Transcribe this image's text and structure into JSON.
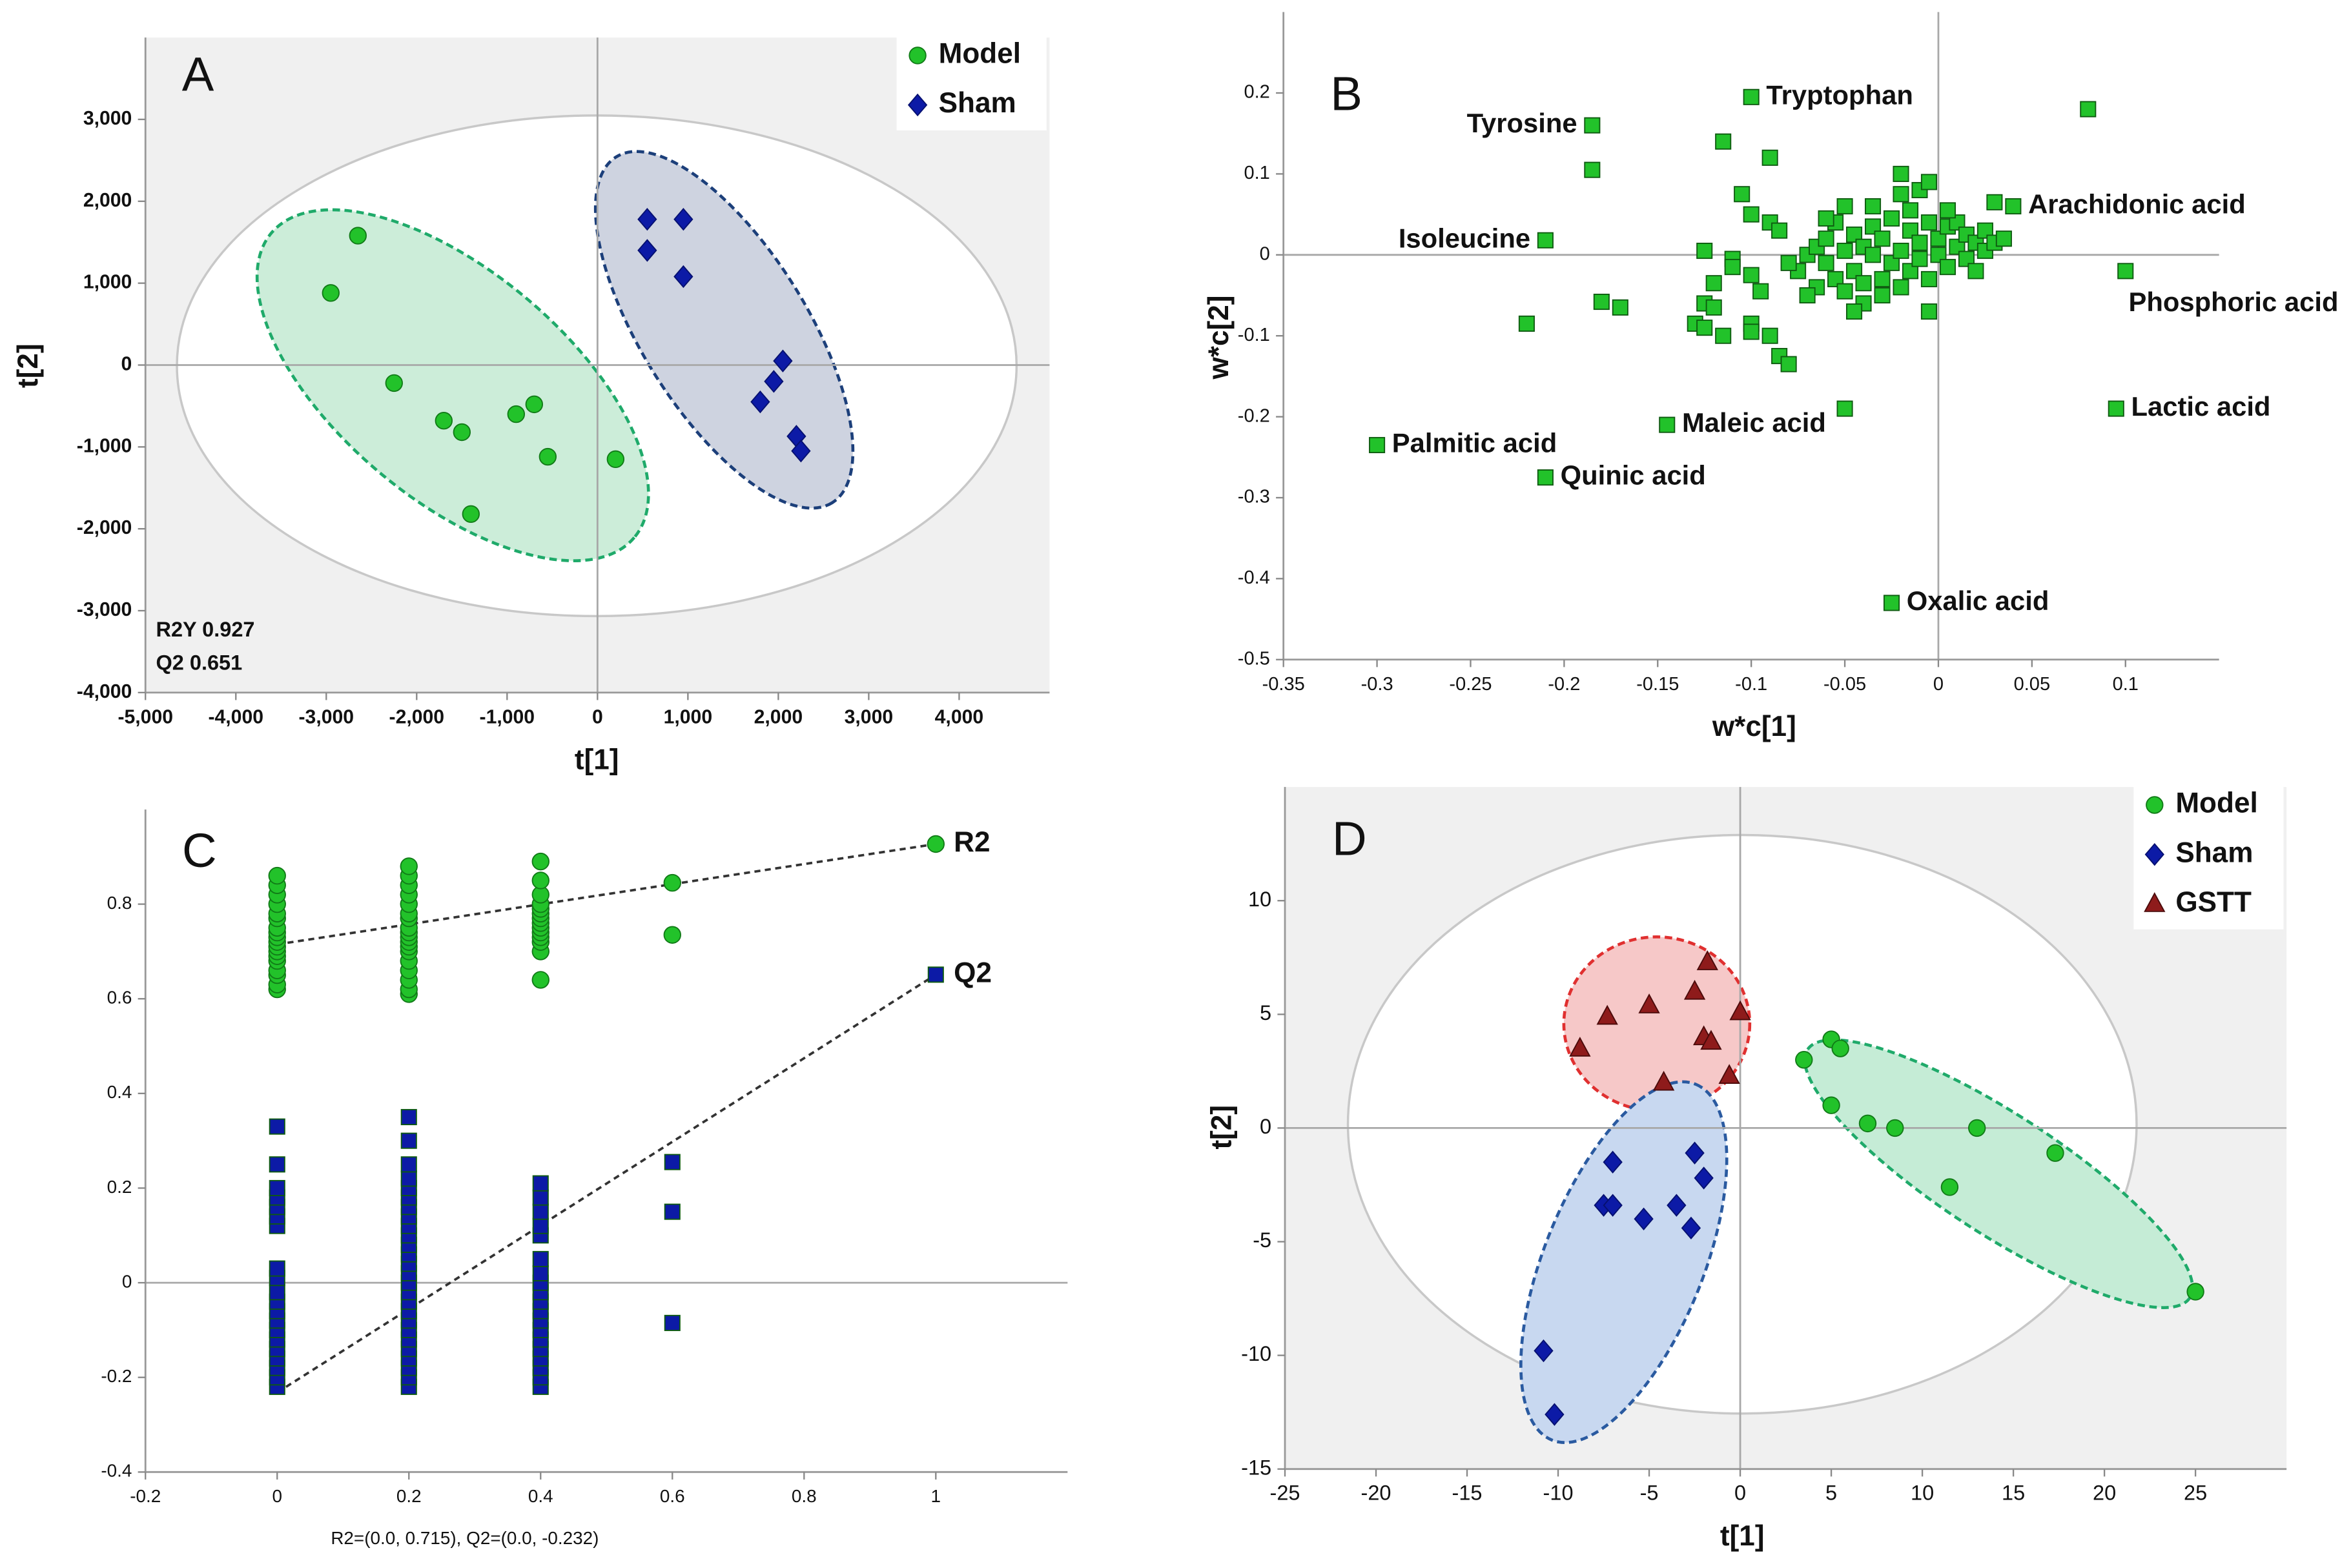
{
  "chart_data": [
    {
      "type": "scatter",
      "panel": "A",
      "x_label": "t[1]",
      "y_label": "t[2]",
      "annotations": [
        "R2Y 0.927",
        "Q2 0.651"
      ],
      "xlim": [
        -5000,
        5000
      ],
      "xticks": [
        {
          "value": -5000,
          "label": "-5,000"
        },
        {
          "value": -4000,
          "label": "-4,000"
        },
        {
          "value": -3000,
          "label": "-3,000"
        },
        {
          "value": -2000,
          "label": "-2,000"
        },
        {
          "value": -1000,
          "label": "-1,000"
        },
        0,
        {
          "value": 1000,
          "label": "1,000"
        },
        {
          "value": 2000,
          "label": "2,000"
        },
        {
          "value": 3000,
          "label": "3,000"
        },
        {
          "value": 4000,
          "label": "4,000"
        }
      ],
      "ylim": [
        -4000,
        4000
      ],
      "yticks": [
        {
          "value": -4000,
          "label": "-4,000"
        },
        {
          "value": -3000,
          "label": "-3,000"
        },
        {
          "value": -2000,
          "label": "-2,000"
        },
        {
          "value": -1000,
          "label": "-1,000"
        },
        0,
        {
          "value": 1000,
          "label": "1,000"
        },
        {
          "value": 2000,
          "label": "2,000"
        },
        {
          "value": 3000,
          "label": "3,000"
        }
      ],
      "plot_background": "#f0f0f0",
      "zero_lines": [
        "x",
        "y"
      ],
      "legend": "top-right",
      "series": [
        {
          "name": "Model",
          "color": "#22c22a",
          "marker": "circle",
          "x": [
            -2650,
            -2950,
            -2250,
            -1700,
            -1500,
            -900,
            -700,
            -550,
            -1400,
            200
          ],
          "values": [
            1580,
            880,
            -220,
            -680,
            -820,
            -600,
            -480,
            -1120,
            -1820,
            -1150
          ]
        },
        {
          "name": "Sham",
          "color": "#0c1aa6",
          "marker": "diamond",
          "x": [
            550,
            950,
            550,
            950,
            2050,
            1950,
            1800,
            2200,
            2250
          ],
          "values": [
            1780,
            1780,
            1400,
            1080,
            50,
            -200,
            -450,
            -870,
            -1050
          ]
        }
      ]
    },
    {
      "type": "scatter",
      "panel": "B",
      "x_label": "w*c[1]",
      "y_label": "w*c[2]",
      "xlim": [
        -0.35,
        0.15
      ],
      "xticks": [
        -0.35,
        -0.3,
        -0.25,
        -0.2,
        -0.15,
        -0.1,
        -0.05,
        0,
        0.05,
        0.1
      ],
      "ylim": [
        -0.5,
        0.3
      ],
      "yticks": [
        -0.5,
        -0.4,
        -0.3,
        -0.2,
        -0.1,
        0,
        0.1,
        0.2
      ],
      "zero_lines": [
        "x",
        "y"
      ],
      "color": "#22c22a",
      "marker": "square",
      "x": [
        -0.185,
        -0.1,
        0.04,
        -0.21,
        0.1,
        0.095,
        -0.3,
        -0.145,
        -0.21,
        -0.025,
        -0.115,
        -0.09,
        -0.185,
        -0.105,
        -0.1,
        -0.09,
        -0.085,
        -0.05,
        -0.035,
        -0.02,
        -0.01,
        -0.02,
        -0.005,
        0.03,
        -0.125,
        -0.11,
        -0.11,
        -0.1,
        -0.095,
        -0.12,
        -0.125,
        -0.12,
        -0.13,
        -0.125,
        -0.115,
        -0.1,
        -0.1,
        -0.085,
        -0.08,
        -0.09,
        -0.18,
        -0.17,
        -0.22,
        -0.05,
        -0.005,
        0.08,
        -0.075,
        -0.07,
        -0.065,
        -0.06,
        -0.06,
        -0.055,
        -0.05,
        -0.05,
        -0.045,
        -0.045,
        -0.04,
        -0.04,
        -0.035,
        -0.035,
        -0.03,
        -0.03,
        -0.025,
        -0.025,
        -0.02,
        -0.02,
        -0.015,
        -0.015,
        -0.01,
        -0.01,
        -0.005,
        -0.005,
        0,
        0,
        0.005,
        0.005,
        0.01,
        0.01,
        0.015,
        0.015,
        0.02,
        0.02,
        0.025,
        0.025,
        0.03,
        0.035,
        -0.065,
        -0.055,
        -0.045,
        -0.07,
        -0.08,
        -0.03,
        0.005,
        -0.015,
        -0.06,
        -0.04
      ],
      "values": [
        0.16,
        0.195,
        0.06,
        0.018,
        -0.02,
        -0.19,
        -0.235,
        -0.21,
        -0.275,
        -0.43,
        0.14,
        0.12,
        0.105,
        0.075,
        0.05,
        0.04,
        0.03,
        0.06,
        0.06,
        0.075,
        0.08,
        0.1,
        0.09,
        0.065,
        0.005,
        -0.005,
        -0.015,
        -0.025,
        -0.045,
        -0.035,
        -0.06,
        -0.065,
        -0.085,
        -0.09,
        -0.1,
        -0.085,
        -0.095,
        -0.125,
        -0.135,
        -0.1,
        -0.058,
        -0.065,
        -0.085,
        -0.19,
        -0.07,
        0.18,
        -0.02,
        0,
        0.01,
        -0.01,
        0.02,
        -0.03,
        0.005,
        -0.045,
        0.025,
        -0.02,
        0.01,
        -0.06,
        0,
        0.035,
        -0.03,
        0.02,
        -0.01,
        0.045,
        0.005,
        -0.04,
        0.03,
        -0.02,
        0.015,
        -0.005,
        0.04,
        -0.03,
        0.02,
        0,
        0.035,
        -0.015,
        0.01,
        0.04,
        -0.005,
        0.025,
        0.015,
        -0.02,
        0.005,
        0.03,
        0.015,
        0.02,
        -0.04,
        0.04,
        -0.07,
        -0.05,
        -0.01,
        -0.05,
        0.055,
        0.055,
        0.045,
        -0.035
      ],
      "point_labels": [
        "Tyrosine",
        "Tryptophan",
        "Arachidonic acid",
        "Isoleucine",
        "Phosphoric acid",
        "Lactic acid",
        "Palmitic acid",
        "Maleic acid",
        "Quinic acid",
        "Oxalic acid",
        null,
        null,
        null,
        null,
        null,
        null,
        null,
        null,
        null,
        null,
        null,
        null,
        null,
        null,
        null,
        null,
        null,
        null,
        null,
        null,
        null,
        null,
        null,
        null,
        null,
        null,
        null,
        null,
        null,
        null,
        null,
        null,
        null,
        null,
        null,
        null,
        null,
        null,
        null,
        null,
        null,
        null,
        null,
        null,
        null,
        null,
        null,
        null,
        null,
        null,
        null,
        null,
        null,
        null,
        null,
        null,
        null,
        null,
        null,
        null,
        null,
        null,
        null,
        null,
        null,
        null,
        null,
        null,
        null,
        null,
        null,
        null,
        null,
        null,
        null,
        null,
        null,
        null,
        null,
        null,
        null,
        null,
        null,
        null,
        null,
        null
      ]
    },
    {
      "type": "scatter",
      "panel": "C",
      "footnote": "R2=(0.0, 0.715), Q2=(0.0, -0.232)",
      "xlim": [
        -0.2,
        1.2
      ],
      "xticks": [
        -0.2,
        0,
        0.2,
        0.4,
        0.6,
        0.8,
        1
      ],
      "ylim": [
        -0.4,
        1.0
      ],
      "yticks": [
        -0.4,
        -0.2,
        0,
        0.2,
        0.4,
        0.6,
        0.8
      ],
      "zero_lines": [
        "y"
      ],
      "series_labels": "end",
      "series": [
        {
          "name": "R2",
          "color": "#22c22a",
          "marker": "circle",
          "x": [
            0,
            0,
            0,
            0,
            0,
            0,
            0,
            0,
            0,
            0,
            0,
            0,
            0,
            0,
            0,
            0,
            0,
            0,
            0.2,
            0.2,
            0.2,
            0.2,
            0.2,
            0.2,
            0.2,
            0.2,
            0.2,
            0.2,
            0.2,
            0.2,
            0.2,
            0.2,
            0.2,
            0.2,
            0.2,
            0.2,
            0.4,
            0.4,
            0.4,
            0.4,
            0.4,
            0.4,
            0.4,
            0.4,
            0.4,
            0.4,
            0.4,
            0.4,
            0.4,
            0.4,
            0.6,
            0.6,
            1
          ],
          "values": [
            0.62,
            0.63,
            0.65,
            0.66,
            0.68,
            0.69,
            0.7,
            0.71,
            0.72,
            0.73,
            0.74,
            0.75,
            0.77,
            0.78,
            0.8,
            0.82,
            0.84,
            0.86,
            0.61,
            0.62,
            0.64,
            0.66,
            0.68,
            0.7,
            0.71,
            0.72,
            0.73,
            0.74,
            0.75,
            0.77,
            0.78,
            0.8,
            0.82,
            0.84,
            0.86,
            0.88,
            0.64,
            0.7,
            0.72,
            0.73,
            0.74,
            0.75,
            0.76,
            0.77,
            0.78,
            0.79,
            0.8,
            0.82,
            0.85,
            0.89,
            0.845,
            0.735,
            0.927
          ],
          "fit": {
            "x": [
              0,
              1
            ],
            "y": [
              0.715,
              0.927
            ]
          }
        },
        {
          "name": "Q2",
          "color": "#0c1aa6",
          "marker": "square",
          "x": [
            0,
            0,
            0,
            0,
            0,
            0,
            0,
            0,
            0,
            0,
            0,
            0,
            0,
            0,
            0,
            0,
            0,
            0,
            0,
            0,
            0.2,
            0.2,
            0.2,
            0.2,
            0.2,
            0.2,
            0.2,
            0.2,
            0.2,
            0.2,
            0.2,
            0.2,
            0.2,
            0.2,
            0.2,
            0.2,
            0.2,
            0.2,
            0.2,
            0.2,
            0.2,
            0.2,
            0.2,
            0.2,
            0.2,
            0.2,
            0.4,
            0.4,
            0.4,
            0.4,
            0.4,
            0.4,
            0.4,
            0.4,
            0.4,
            0.4,
            0.4,
            0.4,
            0.4,
            0.4,
            0.4,
            0.4,
            0.4,
            0.4,
            0.4,
            0.6,
            0.6,
            0.6,
            1
          ],
          "values": [
            -0.22,
            -0.2,
            -0.18,
            -0.16,
            -0.14,
            -0.12,
            -0.1,
            -0.08,
            -0.06,
            -0.04,
            -0.02,
            0.01,
            0.03,
            0.12,
            0.14,
            0.16,
            0.18,
            0.2,
            0.25,
            0.33,
            -0.22,
            -0.2,
            -0.18,
            -0.16,
            -0.14,
            -0.12,
            -0.1,
            -0.08,
            -0.06,
            -0.04,
            -0.02,
            0,
            0.02,
            0.04,
            0.06,
            0.08,
            0.1,
            0.12,
            0.14,
            0.16,
            0.18,
            0.2,
            0.22,
            0.25,
            0.3,
            0.35,
            -0.22,
            -0.2,
            -0.18,
            -0.16,
            -0.14,
            -0.12,
            -0.1,
            -0.08,
            -0.06,
            -0.04,
            -0.02,
            0,
            0.02,
            0.05,
            0.1,
            0.12,
            0.15,
            0.18,
            0.21,
            0.255,
            0.15,
            -0.085,
            0.651
          ],
          "fit": {
            "x": [
              0,
              1
            ],
            "y": [
              -0.232,
              0.651
            ]
          }
        }
      ]
    },
    {
      "type": "scatter",
      "panel": "D",
      "x_label": "t[1]",
      "y_label": "t[2]",
      "xlim": [
        -25,
        30
      ],
      "xticks": [
        -25,
        -20,
        -15,
        -10,
        -5,
        0,
        5,
        10,
        15,
        20,
        25
      ],
      "ylim": [
        -15,
        15
      ],
      "yticks": [
        -15,
        -10,
        -5,
        0,
        5,
        10
      ],
      "plot_background": "#f0f0f0",
      "zero_lines": [
        "x",
        "y"
      ],
      "legend": "top-right",
      "series": [
        {
          "name": "Model",
          "color": "#22c22a",
          "marker": "circle",
          "x": [
            3.5,
            5,
            5.5,
            5,
            7,
            8.5,
            13,
            11.5,
            17.3,
            25
          ],
          "values": [
            3,
            3.9,
            3.5,
            1,
            0.2,
            0,
            0,
            -2.6,
            -1.1,
            -7.2
          ]
        },
        {
          "name": "Sham",
          "color": "#0c1aa6",
          "marker": "diamond",
          "x": [
            -7,
            -7.5,
            -7,
            -5.3,
            -3.5,
            -2.5,
            -2,
            -2.7,
            -10.8,
            -10.2
          ],
          "values": [
            -1.5,
            -3.4,
            -3.4,
            -4,
            -3.4,
            -1.1,
            -2.2,
            -4.4,
            -9.8,
            -12.6
          ]
        },
        {
          "name": "GSTT",
          "color": "#8e1b1b",
          "marker": "triangle",
          "x": [
            -8.8,
            -7.3,
            -5,
            -4.2,
            -2.5,
            -1.8,
            -2,
            -1.6,
            0,
            -0.6
          ],
          "values": [
            3.5,
            4.9,
            5.4,
            2,
            6,
            7.3,
            4,
            3.8,
            5.1,
            2.3
          ]
        }
      ]
    }
  ]
}
